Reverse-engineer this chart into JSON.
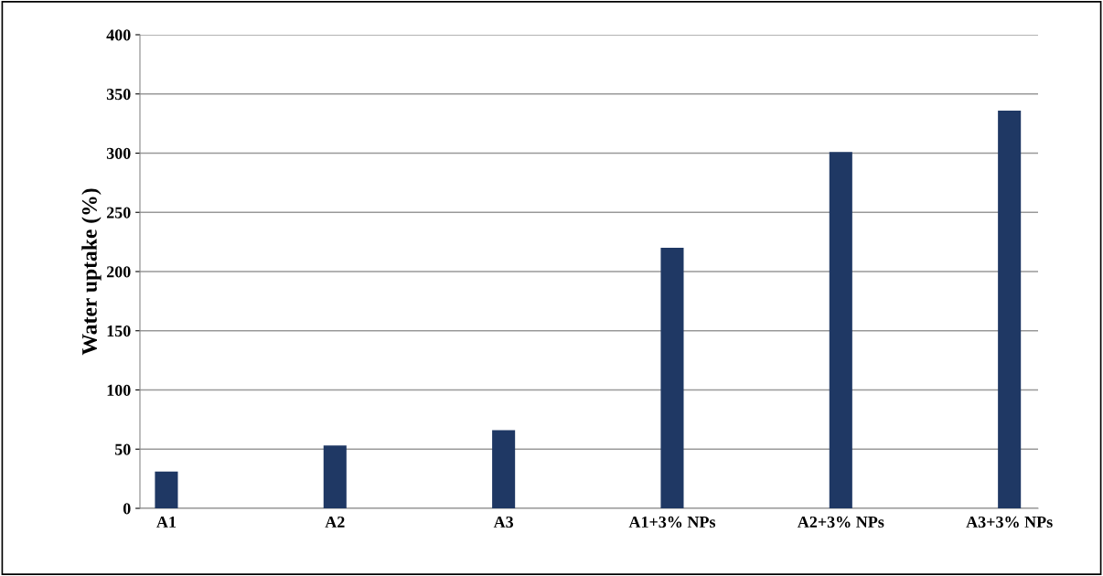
{
  "chart_data": {
    "type": "bar",
    "ylabel": "Water uptake (%)",
    "categories": [
      "A1",
      "A2",
      "A3",
      "A1+3% NPs",
      "A2+3% NPs",
      "A3+3% NPs"
    ],
    "values": [
      31,
      53,
      66,
      220,
      301,
      336
    ],
    "color": "#1f3864",
    "ylim": [
      0,
      400
    ],
    "yticks": [
      0,
      50,
      100,
      150,
      200,
      250,
      300,
      350,
      400
    ],
    "grid": "y"
  }
}
